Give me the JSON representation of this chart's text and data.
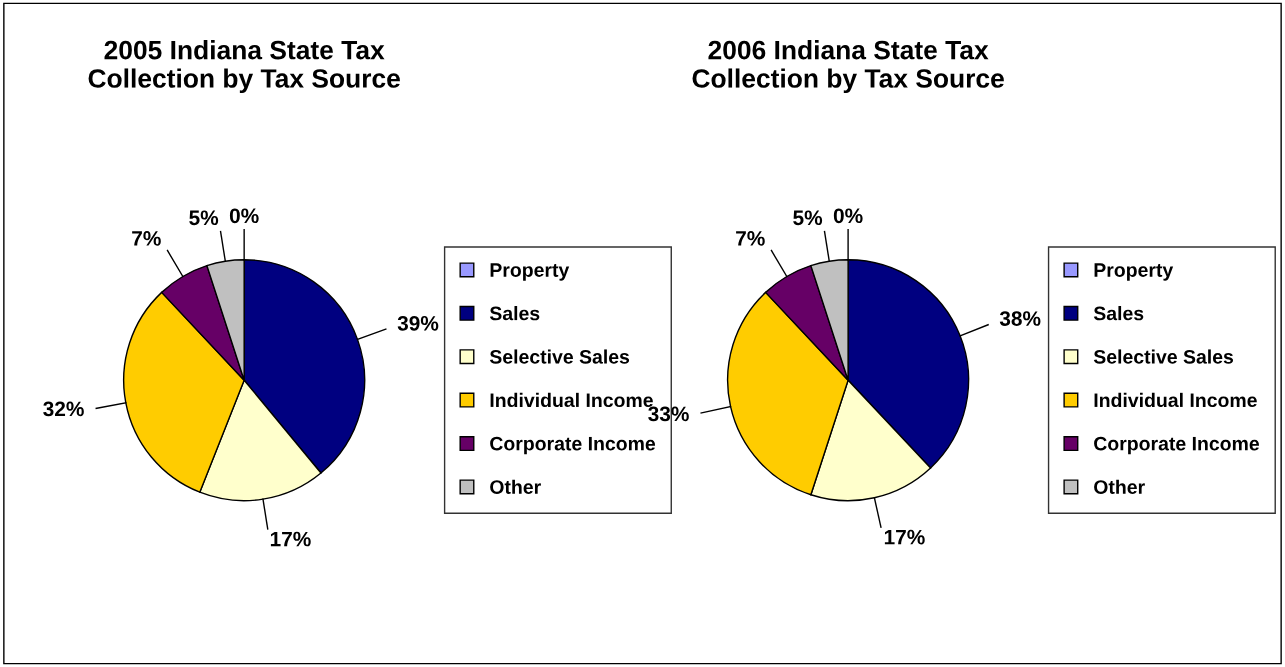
{
  "chart_data": [
    {
      "type": "pie",
      "title": "2005 Indiana State Tax\nCollection by Tax Source",
      "categories": [
        "Property",
        "Sales",
        "Selective Sales",
        "Individual Income",
        "Corporate Income",
        "Other"
      ],
      "values": [
        0,
        39,
        17,
        32,
        7,
        5
      ],
      "value_labels": [
        "0%",
        "39%",
        "17%",
        "32%",
        "7%",
        "5%"
      ],
      "colors": [
        "#9999ff",
        "#000080",
        "#ffffcc",
        "#ffcc00",
        "#660066",
        "#c0c0c0"
      ],
      "legend": "right"
    },
    {
      "type": "pie",
      "title": "2006 Indiana State Tax\nCollection by Tax Source",
      "categories": [
        "Property",
        "Sales",
        "Selective Sales",
        "Individual Income",
        "Corporate Income",
        "Other"
      ],
      "values": [
        0,
        38,
        17,
        33,
        7,
        5
      ],
      "value_labels": [
        "0%",
        "38%",
        "17%",
        "33%",
        "7%",
        "5%"
      ],
      "colors": [
        "#9999ff",
        "#000080",
        "#ffffcc",
        "#ffcc00",
        "#660066",
        "#c0c0c0"
      ],
      "legend": "right"
    }
  ]
}
